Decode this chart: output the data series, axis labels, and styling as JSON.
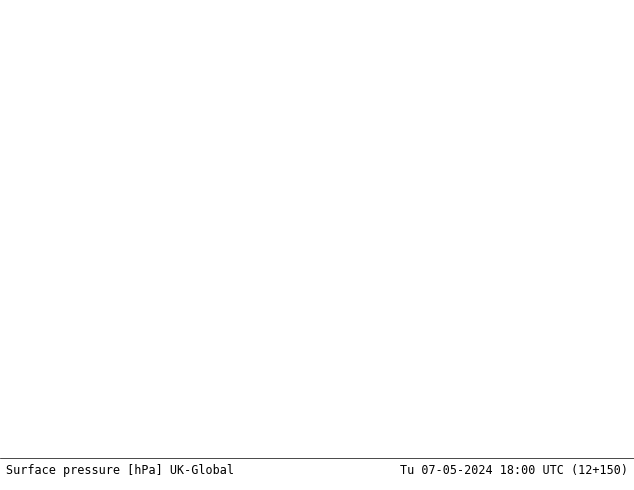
{
  "title_left": "Surface pressure [hPa] UK-Global",
  "title_right": "Tu 07-05-2024 18:00 UTC (12+150)",
  "bg_color": "#d0d0d0",
  "land_color": "#b8f0a8",
  "coast_color": "#707070",
  "isobar_red": "#cc0000",
  "isobar_black": "#000000",
  "isobar_blue": "#0000bb",
  "font_mono": "monospace",
  "label_fontsize": 7.5,
  "title_fontsize": 8.5,
  "lon_min": -25,
  "lon_max": 20,
  "lat_min": 43,
  "lat_max": 65
}
